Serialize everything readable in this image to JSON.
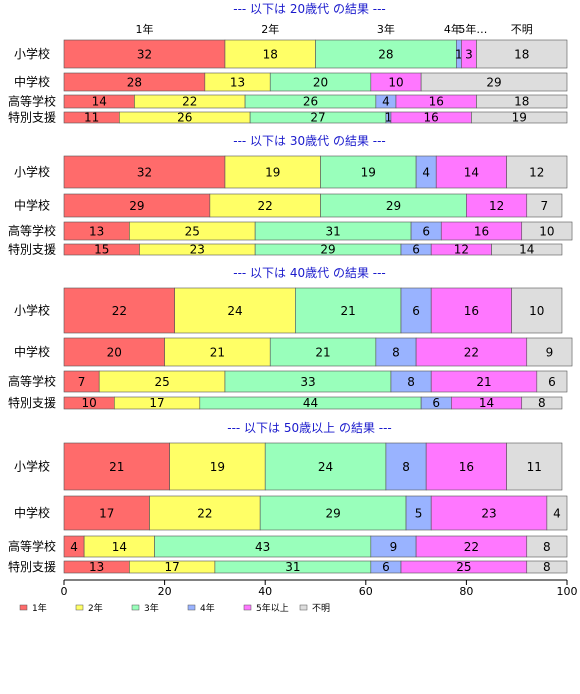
{
  "chart_data": {
    "type": "bar",
    "orientation": "horizontal-stacked",
    "xlim": [
      0,
      100
    ],
    "x_ticks": [
      "0",
      "20",
      "40",
      "60",
      "80",
      "100"
    ],
    "grid": false,
    "legend_placement": "bottom-left",
    "legend": [
      "1年",
      "2年",
      "3年",
      "4年",
      "5年以上",
      "不明"
    ],
    "colors": [
      "#ff6b6b",
      "#ffff66",
      "#99ffbb",
      "#99b3ff",
      "#ff77ff",
      "#dddddd"
    ],
    "top_labels": [
      "1年",
      "2年",
      "3年",
      "4年",
      "5年…",
      "不明"
    ],
    "panels": [
      {
        "title": "--- 以下は 20歳代 の結果 ---",
        "categories": [
          "小学校",
          "中学校",
          "高等学校",
          "特別支援"
        ],
        "values": [
          [
            32,
            18,
            28,
            1,
            3,
            18
          ],
          [
            28,
            13,
            20,
            0,
            10,
            29
          ],
          [
            14,
            22,
            26,
            4,
            16,
            18
          ],
          [
            11,
            26,
            27,
            1,
            16,
            19
          ]
        ]
      },
      {
        "title": "--- 以下は 30歳代 の結果 ---",
        "categories": [
          "小学校",
          "中学校",
          "高等学校",
          "特別支援"
        ],
        "values": [
          [
            32,
            19,
            19,
            4,
            14,
            12
          ],
          [
            29,
            22,
            29,
            0,
            12,
            7
          ],
          [
            13,
            25,
            31,
            6,
            16,
            10
          ],
          [
            15,
            23,
            29,
            6,
            12,
            14
          ]
        ]
      },
      {
        "title": "--- 以下は 40歳代 の結果 ---",
        "categories": [
          "小学校",
          "中学校",
          "高等学校",
          "特別支援"
        ],
        "values": [
          [
            22,
            24,
            21,
            6,
            16,
            10
          ],
          [
            20,
            21,
            21,
            8,
            22,
            9
          ],
          [
            7,
            25,
            33,
            8,
            21,
            6
          ],
          [
            10,
            17,
            44,
            6,
            14,
            8
          ]
        ]
      },
      {
        "title": "--- 以下は 50歳以上 の結果 ---",
        "categories": [
          "小学校",
          "中学校",
          "高等学校",
          "特別支援"
        ],
        "values": [
          [
            21,
            19,
            24,
            8,
            16,
            11
          ],
          [
            17,
            22,
            29,
            5,
            23,
            4
          ],
          [
            4,
            14,
            43,
            9,
            22,
            8
          ],
          [
            13,
            17,
            31,
            6,
            25,
            8
          ]
        ]
      }
    ]
  }
}
